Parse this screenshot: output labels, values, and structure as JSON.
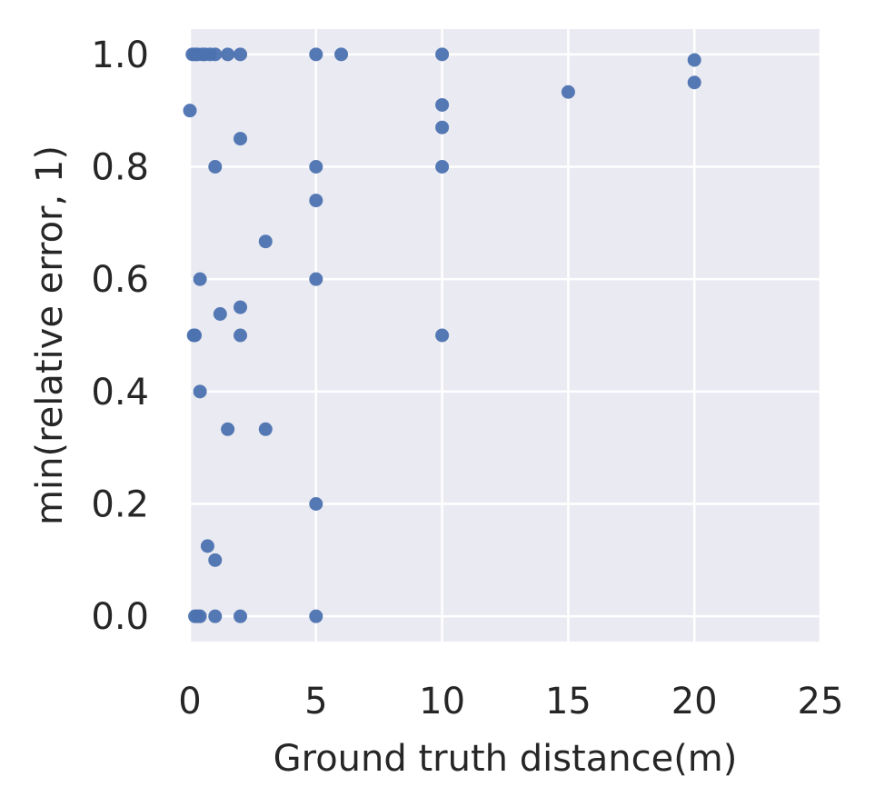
{
  "chart_data": {
    "type": "scatter",
    "title": "",
    "xlabel": "Ground truth distance(m)",
    "ylabel": "min(relative error, 1)",
    "xlim": [
      0,
      25
    ],
    "ylim": [
      -0.045,
      1.045
    ],
    "xticks": [
      0,
      5,
      10,
      15,
      20,
      25
    ],
    "xtick_labels": [
      "0",
      "5",
      "10",
      "15",
      "20",
      "25"
    ],
    "yticks": [
      0.0,
      0.2,
      0.4,
      0.6,
      0.8,
      1.0
    ],
    "ytick_labels": [
      "0.0",
      "0.2",
      "0.4",
      "0.6",
      "0.8",
      "1.0"
    ],
    "grid": true,
    "colors": {
      "background": "#eaeaf2",
      "grid": "#ffffff",
      "point": "#4c72b0",
      "text": "#262626"
    },
    "series": [
      {
        "points": [
          {
            "x": 0.1,
            "y": 1.0
          },
          {
            "x": 0.2,
            "y": 1.0
          },
          {
            "x": 0.3,
            "y": 1.0
          },
          {
            "x": 0.5,
            "y": 1.0
          },
          {
            "x": 0.6,
            "y": 1.0
          },
          {
            "x": 0.8,
            "y": 1.0
          },
          {
            "x": 1.0,
            "y": 1.0
          },
          {
            "x": 1.5,
            "y": 1.0
          },
          {
            "x": 2.0,
            "y": 1.0
          },
          {
            "x": 5.0,
            "y": 1.0
          },
          {
            "x": 6.0,
            "y": 1.0
          },
          {
            "x": 10.0,
            "y": 1.0
          },
          {
            "x": 20.0,
            "y": 0.99
          },
          {
            "x": 20.0,
            "y": 0.95
          },
          {
            "x": 15.0,
            "y": 0.933
          },
          {
            "x": 10.0,
            "y": 0.91
          },
          {
            "x": 10.0,
            "y": 0.87
          },
          {
            "x": 0.0,
            "y": 0.9
          },
          {
            "x": 2.0,
            "y": 0.85
          },
          {
            "x": 1.0,
            "y": 0.8
          },
          {
            "x": 5.0,
            "y": 0.8
          },
          {
            "x": 10.0,
            "y": 0.8
          },
          {
            "x": 5.0,
            "y": 0.74
          },
          {
            "x": 3.0,
            "y": 0.667
          },
          {
            "x": 0.4,
            "y": 0.6
          },
          {
            "x": 5.0,
            "y": 0.6
          },
          {
            "x": 2.0,
            "y": 0.55
          },
          {
            "x": 1.2,
            "y": 0.538
          },
          {
            "x": 0.15,
            "y": 0.5
          },
          {
            "x": 0.2,
            "y": 0.5
          },
          {
            "x": 2.0,
            "y": 0.5
          },
          {
            "x": 10.0,
            "y": 0.5
          },
          {
            "x": 0.4,
            "y": 0.4
          },
          {
            "x": 1.5,
            "y": 0.333
          },
          {
            "x": 3.0,
            "y": 0.333
          },
          {
            "x": 5.0,
            "y": 0.2
          },
          {
            "x": 0.7,
            "y": 0.125
          },
          {
            "x": 1.0,
            "y": 0.1
          },
          {
            "x": 0.2,
            "y": 0.0
          },
          {
            "x": 0.3,
            "y": 0.0
          },
          {
            "x": 0.4,
            "y": 0.0
          },
          {
            "x": 1.0,
            "y": 0.0
          },
          {
            "x": 2.0,
            "y": 0.0
          },
          {
            "x": 5.0,
            "y": 0.0
          }
        ]
      }
    ]
  }
}
